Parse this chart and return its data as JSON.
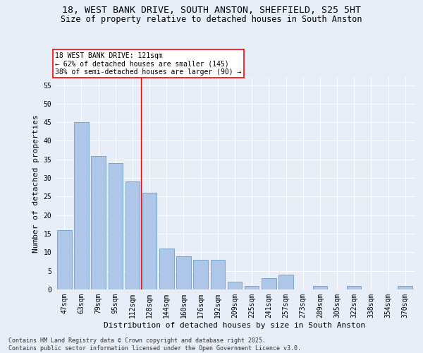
{
  "title_line1": "18, WEST BANK DRIVE, SOUTH ANSTON, SHEFFIELD, S25 5HT",
  "title_line2": "Size of property relative to detached houses in South Anston",
  "xlabel": "Distribution of detached houses by size in South Anston",
  "ylabel": "Number of detached properties",
  "categories": [
    "47sqm",
    "63sqm",
    "79sqm",
    "95sqm",
    "112sqm",
    "128sqm",
    "144sqm",
    "160sqm",
    "176sqm",
    "192sqm",
    "209sqm",
    "225sqm",
    "241sqm",
    "257sqm",
    "273sqm",
    "289sqm",
    "305sqm",
    "322sqm",
    "338sqm",
    "354sqm",
    "370sqm"
  ],
  "values": [
    16,
    45,
    36,
    34,
    29,
    26,
    11,
    9,
    8,
    8,
    2,
    1,
    3,
    4,
    0,
    1,
    0,
    1,
    0,
    0,
    1
  ],
  "bar_color": "#aec6e8",
  "bar_edge_color": "#5a8fc2",
  "vline_x_index": 4.5,
  "vline_color": "red",
  "annotation_title": "18 WEST BANK DRIVE: 121sqm",
  "annotation_line1": "← 62% of detached houses are smaller (145)",
  "annotation_line2": "38% of semi-detached houses are larger (90) →",
  "annotation_box_color": "#ffffff",
  "annotation_box_edge_color": "red",
  "ylim": [
    0,
    57
  ],
  "yticks": [
    0,
    5,
    10,
    15,
    20,
    25,
    30,
    35,
    40,
    45,
    50,
    55
  ],
  "background_color": "#e8eef8",
  "plot_bg_color": "#e8eef8",
  "footer_line1": "Contains HM Land Registry data © Crown copyright and database right 2025.",
  "footer_line2": "Contains public sector information licensed under the Open Government Licence v3.0.",
  "title_fontsize": 9.5,
  "subtitle_fontsize": 8.5,
  "axis_label_fontsize": 8,
  "tick_fontsize": 7,
  "annotation_fontsize": 7,
  "footer_fontsize": 6
}
